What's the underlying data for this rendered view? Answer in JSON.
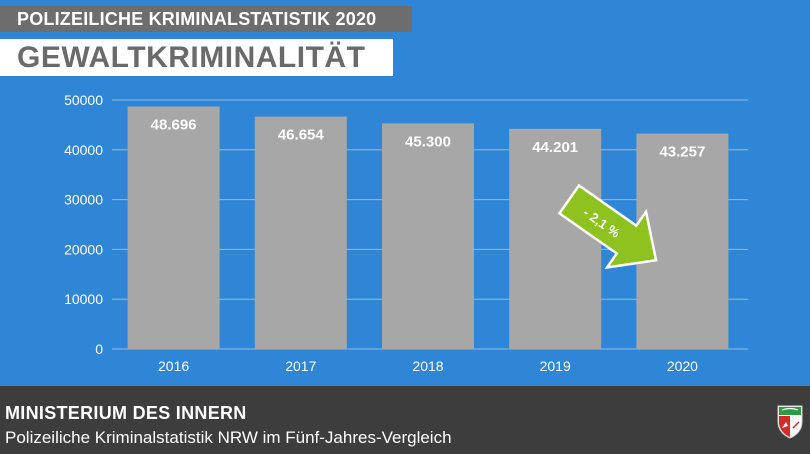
{
  "header": {
    "overline": "POLIZEILICHE KRIMINALSTATISTIK 2020",
    "title": "GEWALTKRIMINALITÄT"
  },
  "footer": {
    "title": "MINISTERIUM DES INNERN",
    "subtitle": "Polizeiliche Kriminalstatistik NRW im Fünf-Jahres-Vergleich",
    "logo": "nrw-crest-icon"
  },
  "annotation": {
    "text": "- 2,1 %",
    "color": "#8dc21f"
  },
  "colors": {
    "background": "#2f86d6",
    "bar": "#a7a7a7",
    "footer": "#3d3d3d",
    "top_label": "#6d6d6d"
  },
  "chart_data": {
    "type": "bar",
    "title": "GEWALTKRIMINALITÄT",
    "categories": [
      "2016",
      "2017",
      "2018",
      "2019",
      "2020"
    ],
    "values": [
      48696,
      46654,
      45300,
      44201,
      43257
    ],
    "data_labels": [
      "48.696",
      "46.654",
      "45.300",
      "44.201",
      "43.257"
    ],
    "ylim": [
      0,
      50000
    ],
    "yticks": [
      0,
      10000,
      20000,
      30000,
      40000,
      50000
    ],
    "ytick_labels": [
      "0",
      "10000",
      "20000",
      "30000",
      "40000",
      "50000"
    ],
    "grid": true,
    "legend": "none"
  }
}
